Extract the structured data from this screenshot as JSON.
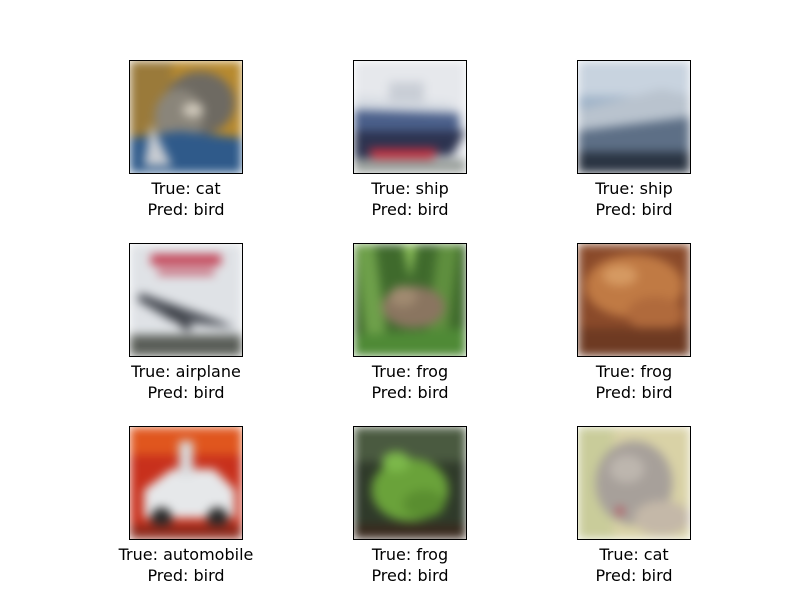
{
  "figure": {
    "panels": [
      {
        "true_text": "True: cat",
        "pred_text": "Pred: bird",
        "image": "cat-photo"
      },
      {
        "true_text": "True: ship",
        "pred_text": "Pred: bird",
        "image": "ship-photo"
      },
      {
        "true_text": "True: ship",
        "pred_text": "Pred: bird",
        "image": "boat-photo"
      },
      {
        "true_text": "True: airplane",
        "pred_text": "Pred: bird",
        "image": "airplane-photo"
      },
      {
        "true_text": "True: frog",
        "pred_text": "Pred: bird",
        "image": "frog-in-grass-photo"
      },
      {
        "true_text": "True: frog",
        "pred_text": "Pred: bird",
        "image": "toad-photo"
      },
      {
        "true_text": "True: automobile",
        "pred_text": "Pred: bird",
        "image": "car-photo"
      },
      {
        "true_text": "True: frog",
        "pred_text": "Pred: bird",
        "image": "green-frog-photo"
      },
      {
        "true_text": "True: cat",
        "pred_text": "Pred: bird",
        "image": "gray-cat-photo"
      }
    ]
  }
}
